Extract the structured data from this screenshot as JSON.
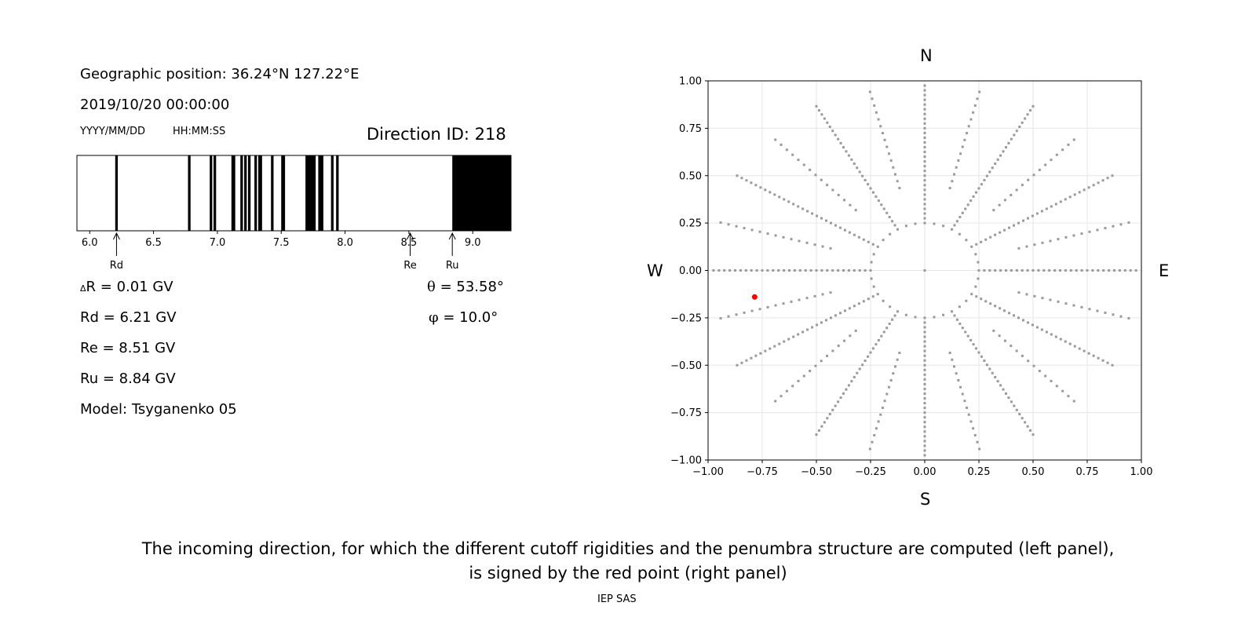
{
  "info": {
    "position": "Geographic position: 36.24°N 127.22°E",
    "datetime": "2019/10/20 00:00:00",
    "date_format": "YYYY/MM/DD",
    "time_format": "HH:MM:SS",
    "direction": "Direction ID: 218"
  },
  "results": {
    "delta_symbol": "Δ",
    "delta_rest": "R = 0.01 GV",
    "rd": "Rd = 6.21 GV",
    "re": "Re = 8.51 GV",
    "ru": "Ru = 8.84 GV",
    "model": "Model: Tsyganenko 05",
    "theta_symbol": "θ",
    "theta_rest": " = 53.58°",
    "phi_symbol": "φ",
    "phi_rest": " = 10.0°"
  },
  "markers": {
    "rd": "Rd",
    "re": "Re",
    "ru": "Ru"
  },
  "compass": {
    "n": "N",
    "s": "S",
    "w": "W",
    "e": "E"
  },
  "caption": {
    "line1": "The incoming direction, for which the different cutoff rigidities and the penumbra structure are computed (left panel),",
    "line2": "is signed by the red point (right panel)"
  },
  "footer": "IEP SAS",
  "colors": {
    "point": "#999999",
    "selected": "#ff0000",
    "grid": "#e6e6e6",
    "stripe": "#000000"
  },
  "chart_data": [
    {
      "type": "bar",
      "name": "penumbra",
      "x_range": [
        5.9,
        9.3
      ],
      "x_ticks": [
        6.0,
        6.5,
        7.0,
        7.5,
        8.0,
        8.5,
        9.0
      ],
      "x_tick_labels": [
        "6.0",
        "6.5",
        "7.0",
        "7.5",
        "8.0",
        "8.5",
        "9.0"
      ],
      "forbidden_bands": [
        [
          6.2,
          6.22
        ],
        [
          6.77,
          6.79
        ],
        [
          6.94,
          6.96
        ],
        [
          6.97,
          6.99
        ],
        [
          7.11,
          7.14
        ],
        [
          7.18,
          7.2
        ],
        [
          7.21,
          7.23
        ],
        [
          7.24,
          7.26
        ],
        [
          7.29,
          7.31
        ],
        [
          7.32,
          7.35
        ],
        [
          7.42,
          7.44
        ],
        [
          7.5,
          7.53
        ],
        [
          7.69,
          7.77
        ],
        [
          7.79,
          7.83
        ],
        [
          7.89,
          7.91
        ],
        [
          7.93,
          7.95
        ],
        [
          8.84,
          9.3
        ]
      ],
      "markers": [
        {
          "label": "Rd",
          "value": 6.21
        },
        {
          "label": "Re",
          "value": 8.51
        },
        {
          "label": "Ru",
          "value": 8.84
        }
      ]
    },
    {
      "type": "scatter",
      "name": "directions",
      "xlim": [
        -1.0,
        1.0
      ],
      "ylim": [
        -1.0,
        1.0
      ],
      "x_ticks": [
        -1.0,
        -0.75,
        -0.5,
        -0.25,
        0.0,
        0.25,
        0.5,
        0.75,
        1.0
      ],
      "x_tick_labels": [
        "−1.00",
        "−0.75",
        "−0.50",
        "−0.25",
        "0.00",
        "0.25",
        "0.50",
        "0.75",
        "1.00"
      ],
      "y_ticks": [
        1.0,
        0.75,
        0.5,
        0.25,
        0.0,
        -0.25,
        -0.5,
        -0.75,
        -1.0
      ],
      "y_tick_labels": [
        "1.00",
        "0.75",
        "0.50",
        "0.25",
        "0.00",
        "−0.25",
        "−0.50",
        "−0.75",
        "−1.00"
      ],
      "grid": true,
      "point_pattern": {
        "center": [
          0.0,
          0.0
        ],
        "inner_circle_radius": 0.25,
        "inner_circle_step_deg": 10,
        "ray_angles_step_deg": 30,
        "ray_radii_start": 0.25,
        "ray_radii_end": 1.0,
        "ray_radii_step": 0.025
      },
      "selected_point": {
        "x": -0.785,
        "y": -0.14
      }
    }
  ]
}
